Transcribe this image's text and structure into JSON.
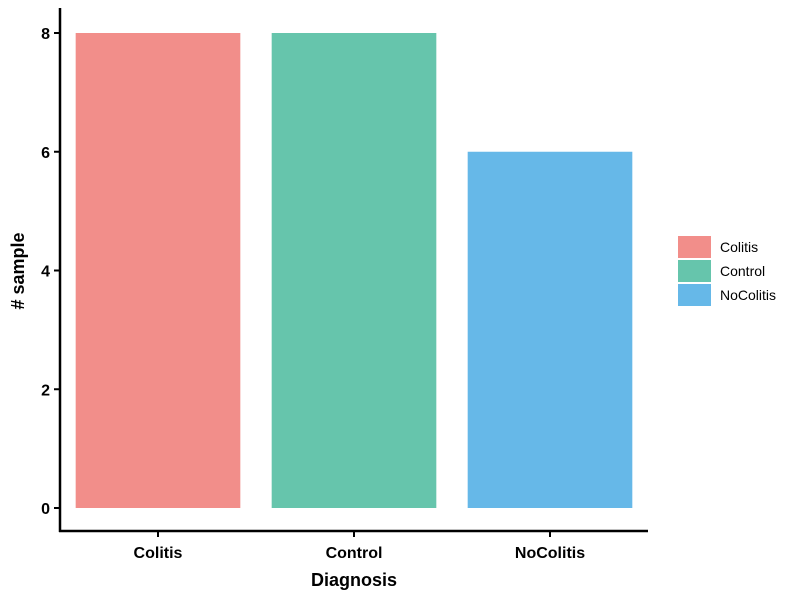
{
  "chart_data": {
    "type": "bar",
    "title": "",
    "xlabel": "Diagnosis",
    "ylabel": "# sample",
    "categories": [
      "Colitis",
      "Control",
      "NoColitis"
    ],
    "values": [
      8,
      8,
      6
    ],
    "colors": [
      "#F28E8A",
      "#66C5AC",
      "#66B8E8"
    ],
    "ylim": [
      0,
      8.4
    ],
    "yticks": [
      0,
      2,
      4,
      6,
      8
    ],
    "grid": false,
    "legend": {
      "position": "right",
      "entries": [
        "Colitis",
        "Control",
        "NoColitis"
      ]
    }
  }
}
